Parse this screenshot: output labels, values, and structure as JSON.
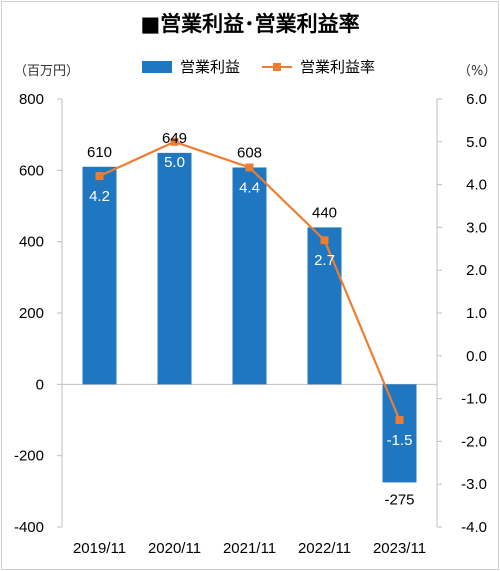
{
  "title": "■営業利益･営業利益率",
  "unit_left": "（百万円）",
  "unit_right": "（%）",
  "colors": {
    "bar": "#1f77c1",
    "line": "#ed7d31",
    "axis": "#bfbfbf"
  },
  "legend": {
    "bar_label": "営業利益",
    "line_label": "営業利益率"
  },
  "chart_data": {
    "type": "bar",
    "categories": [
      "2019/11",
      "2020/11",
      "2021/11",
      "2022/11",
      "2023/11"
    ],
    "series": [
      {
        "name": "営業利益",
        "type": "bar",
        "axis": "left",
        "values": [
          610,
          649,
          608,
          440,
          -275
        ]
      },
      {
        "name": "営業利益率",
        "type": "line",
        "axis": "right",
        "values": [
          4.2,
          5.0,
          4.4,
          2.7,
          -1.5
        ]
      }
    ],
    "bar_labels": [
      "610",
      "649",
      "608",
      "440",
      "-275"
    ],
    "line_labels": [
      "4.2",
      "5.0",
      "4.4",
      "2.7",
      "-1.5"
    ],
    "ylim_left": [
      -400,
      800
    ],
    "yticks_left": [
      "-400",
      "-200",
      "0",
      "200",
      "400",
      "600",
      "800"
    ],
    "ylim_right": [
      -4.0,
      6.0
    ],
    "yticks_right": [
      "-4.0",
      "-3.0",
      "-2.0",
      "-1.0",
      "0.0",
      "1.0",
      "2.0",
      "3.0",
      "4.0",
      "5.0",
      "6.0"
    ],
    "grid": false,
    "legend_position": "top-center"
  }
}
